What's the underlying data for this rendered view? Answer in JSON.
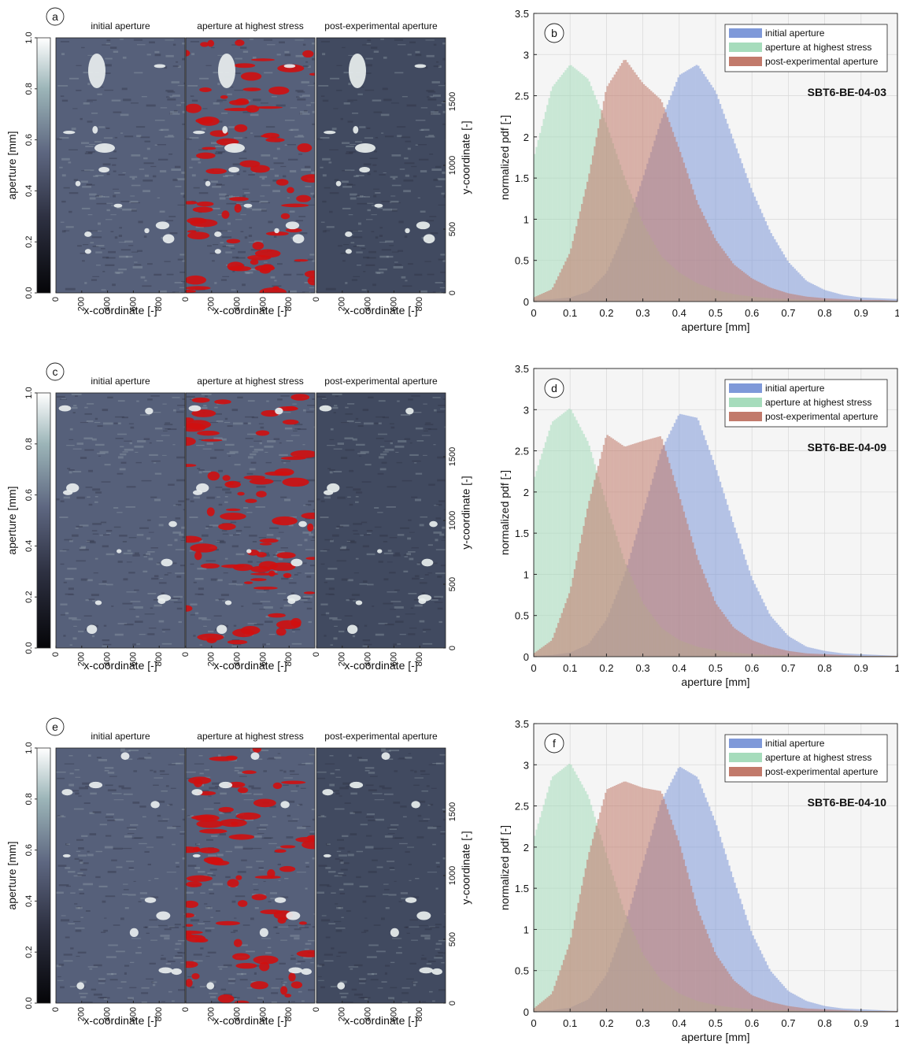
{
  "figure": {
    "rows": [
      {
        "map_panel_label": "a",
        "hist_panel_label": "b",
        "sample_id": "SBT6-BE-04-03",
        "seed": 11
      },
      {
        "map_panel_label": "c",
        "hist_panel_label": "d",
        "sample_id": "SBT6-BE-04-09",
        "seed": 29
      },
      {
        "map_panel_label": "e",
        "hist_panel_label": "f",
        "sample_id": "SBT6-BE-04-10",
        "seed": 47
      }
    ],
    "map_titles": [
      "initial aperture",
      "aperture at highest stress",
      "post-experimental aperture"
    ],
    "map_xlabel": "x-coordinate [-]",
    "map_ylabel": "y-coordinate [-]",
    "map_xticks": [
      "0",
      "200",
      "400",
      "600",
      "800"
    ],
    "map_yticks": [
      "0",
      "500",
      "1000",
      "1500"
    ],
    "colorbar": {
      "label": "aperture [mm]",
      "ticks": [
        "0.0",
        "0.2",
        "0.4",
        "0.6",
        "0.8",
        "1.0"
      ],
      "zero_tick_color": "#cc0000"
    }
  },
  "chart_data": [
    {
      "type": "bar",
      "panel": "b",
      "annotation": "SBT6-BE-04-03",
      "xlabel": "aperture [mm]",
      "ylabel": "normalized pdf [-]",
      "xlim": [
        0,
        1
      ],
      "ylim": [
        0,
        3.5
      ],
      "xticks": [
        "0",
        "0.1",
        "0.2",
        "0.3",
        "0.4",
        "0.5",
        "0.6",
        "0.7",
        "0.8",
        "0.9",
        "1"
      ],
      "yticks": [
        "0",
        "0.5",
        "1",
        "1.5",
        "2",
        "2.5",
        "3",
        "3.5"
      ],
      "grid": true,
      "legend_position": "top-right",
      "x": [
        0,
        0.05,
        0.1,
        0.15,
        0.2,
        0.25,
        0.3,
        0.35,
        0.4,
        0.45,
        0.5,
        0.55,
        0.6,
        0.65,
        0.7,
        0.75,
        0.8,
        0.85,
        0.9,
        0.95,
        1
      ],
      "series": [
        {
          "name": "initial aperture",
          "color": "#7f99d9",
          "values": [
            0.02,
            0.03,
            0.05,
            0.12,
            0.35,
            0.85,
            1.5,
            2.2,
            2.75,
            2.88,
            2.55,
            1.95,
            1.35,
            0.85,
            0.48,
            0.25,
            0.14,
            0.08,
            0.05,
            0.04,
            0.03
          ]
        },
        {
          "name": "aperture at highest stress",
          "color": "#a6dcbc",
          "values": [
            1.75,
            2.6,
            2.88,
            2.7,
            2.15,
            1.5,
            0.95,
            0.55,
            0.35,
            0.22,
            0.14,
            0.09,
            0.06,
            0.04,
            0.03,
            0.02,
            0.02,
            0.01,
            0.01,
            0.01,
            0.01
          ]
        },
        {
          "name": "post-experimental aperture",
          "color": "#c27a6b",
          "values": [
            0.05,
            0.15,
            0.6,
            1.5,
            2.6,
            2.95,
            2.65,
            2.45,
            1.85,
            1.2,
            0.75,
            0.45,
            0.28,
            0.17,
            0.1,
            0.06,
            0.04,
            0.03,
            0.02,
            0.02,
            0.01
          ]
        }
      ]
    },
    {
      "type": "bar",
      "panel": "d",
      "annotation": "SBT6-BE-04-09",
      "xlabel": "aperture [mm]",
      "ylabel": "normalized pdf [-]",
      "xlim": [
        0,
        1
      ],
      "ylim": [
        0,
        3.5
      ],
      "xticks": [
        "0",
        "0.1",
        "0.2",
        "0.3",
        "0.4",
        "0.5",
        "0.6",
        "0.7",
        "0.8",
        "0.9",
        "1"
      ],
      "yticks": [
        "0",
        "0.5",
        "1",
        "1.5",
        "2",
        "2.5",
        "3",
        "3.5"
      ],
      "grid": true,
      "legend_position": "top-right",
      "x": [
        0,
        0.05,
        0.1,
        0.15,
        0.2,
        0.25,
        0.3,
        0.35,
        0.4,
        0.45,
        0.5,
        0.55,
        0.6,
        0.65,
        0.7,
        0.75,
        0.8,
        0.85,
        0.9,
        0.95,
        1
      ],
      "series": [
        {
          "name": "initial aperture",
          "color": "#7f99d9",
          "values": [
            0.01,
            0.02,
            0.05,
            0.15,
            0.45,
            1.0,
            1.75,
            2.5,
            2.95,
            2.9,
            2.3,
            1.6,
            0.95,
            0.5,
            0.25,
            0.12,
            0.07,
            0.04,
            0.03,
            0.02,
            0.01
          ]
        },
        {
          "name": "aperture at highest stress",
          "color": "#a6dcbc",
          "values": [
            2.15,
            2.85,
            3.02,
            2.6,
            1.85,
            1.15,
            0.65,
            0.35,
            0.2,
            0.12,
            0.08,
            0.05,
            0.03,
            0.02,
            0.02,
            0.01,
            0.01,
            0.01,
            0.01,
            0.01,
            0.01
          ]
        },
        {
          "name": "post-experimental aperture",
          "color": "#c27a6b",
          "values": [
            0.04,
            0.2,
            0.8,
            1.85,
            2.7,
            2.55,
            2.62,
            2.68,
            1.95,
            1.2,
            0.65,
            0.35,
            0.2,
            0.12,
            0.07,
            0.04,
            0.03,
            0.02,
            0.01,
            0.01,
            0.01
          ]
        }
      ]
    },
    {
      "type": "bar",
      "panel": "f",
      "annotation": "SBT6-BE-04-10",
      "xlabel": "aperture [mm]",
      "ylabel": "normalized pdf [-]",
      "xlim": [
        0,
        1
      ],
      "ylim": [
        0,
        3.5
      ],
      "xticks": [
        "0",
        "0.1",
        "0.2",
        "0.3",
        "0.4",
        "0.5",
        "0.6",
        "0.7",
        "0.8",
        "0.9",
        "1"
      ],
      "yticks": [
        "0",
        "0.5",
        "1",
        "1.5",
        "2",
        "2.5",
        "3",
        "3.5"
      ],
      "grid": true,
      "legend_position": "top-right",
      "x": [
        0,
        0.05,
        0.1,
        0.15,
        0.2,
        0.25,
        0.3,
        0.35,
        0.4,
        0.45,
        0.5,
        0.55,
        0.6,
        0.65,
        0.7,
        0.75,
        0.8,
        0.85,
        0.9,
        0.95,
        1
      ],
      "series": [
        {
          "name": "initial aperture",
          "color": "#7f99d9",
          "values": [
            0.01,
            0.02,
            0.05,
            0.15,
            0.45,
            1.05,
            1.8,
            2.55,
            2.98,
            2.85,
            2.3,
            1.6,
            0.95,
            0.5,
            0.25,
            0.13,
            0.07,
            0.04,
            0.03,
            0.02,
            0.01
          ]
        },
        {
          "name": "aperture at highest stress",
          "color": "#a6dcbc",
          "values": [
            2.1,
            2.85,
            3.02,
            2.62,
            1.9,
            1.2,
            0.7,
            0.38,
            0.22,
            0.13,
            0.08,
            0.05,
            0.03,
            0.02,
            0.02,
            0.01,
            0.01,
            0.01,
            0.01,
            0.01,
            0.01
          ]
        },
        {
          "name": "post-experimental aperture",
          "color": "#c27a6b",
          "values": [
            0.04,
            0.22,
            0.85,
            1.9,
            2.7,
            2.8,
            2.72,
            2.68,
            2.05,
            1.25,
            0.7,
            0.38,
            0.2,
            0.12,
            0.07,
            0.04,
            0.03,
            0.02,
            0.01,
            0.01,
            0.01
          ]
        }
      ]
    }
  ]
}
